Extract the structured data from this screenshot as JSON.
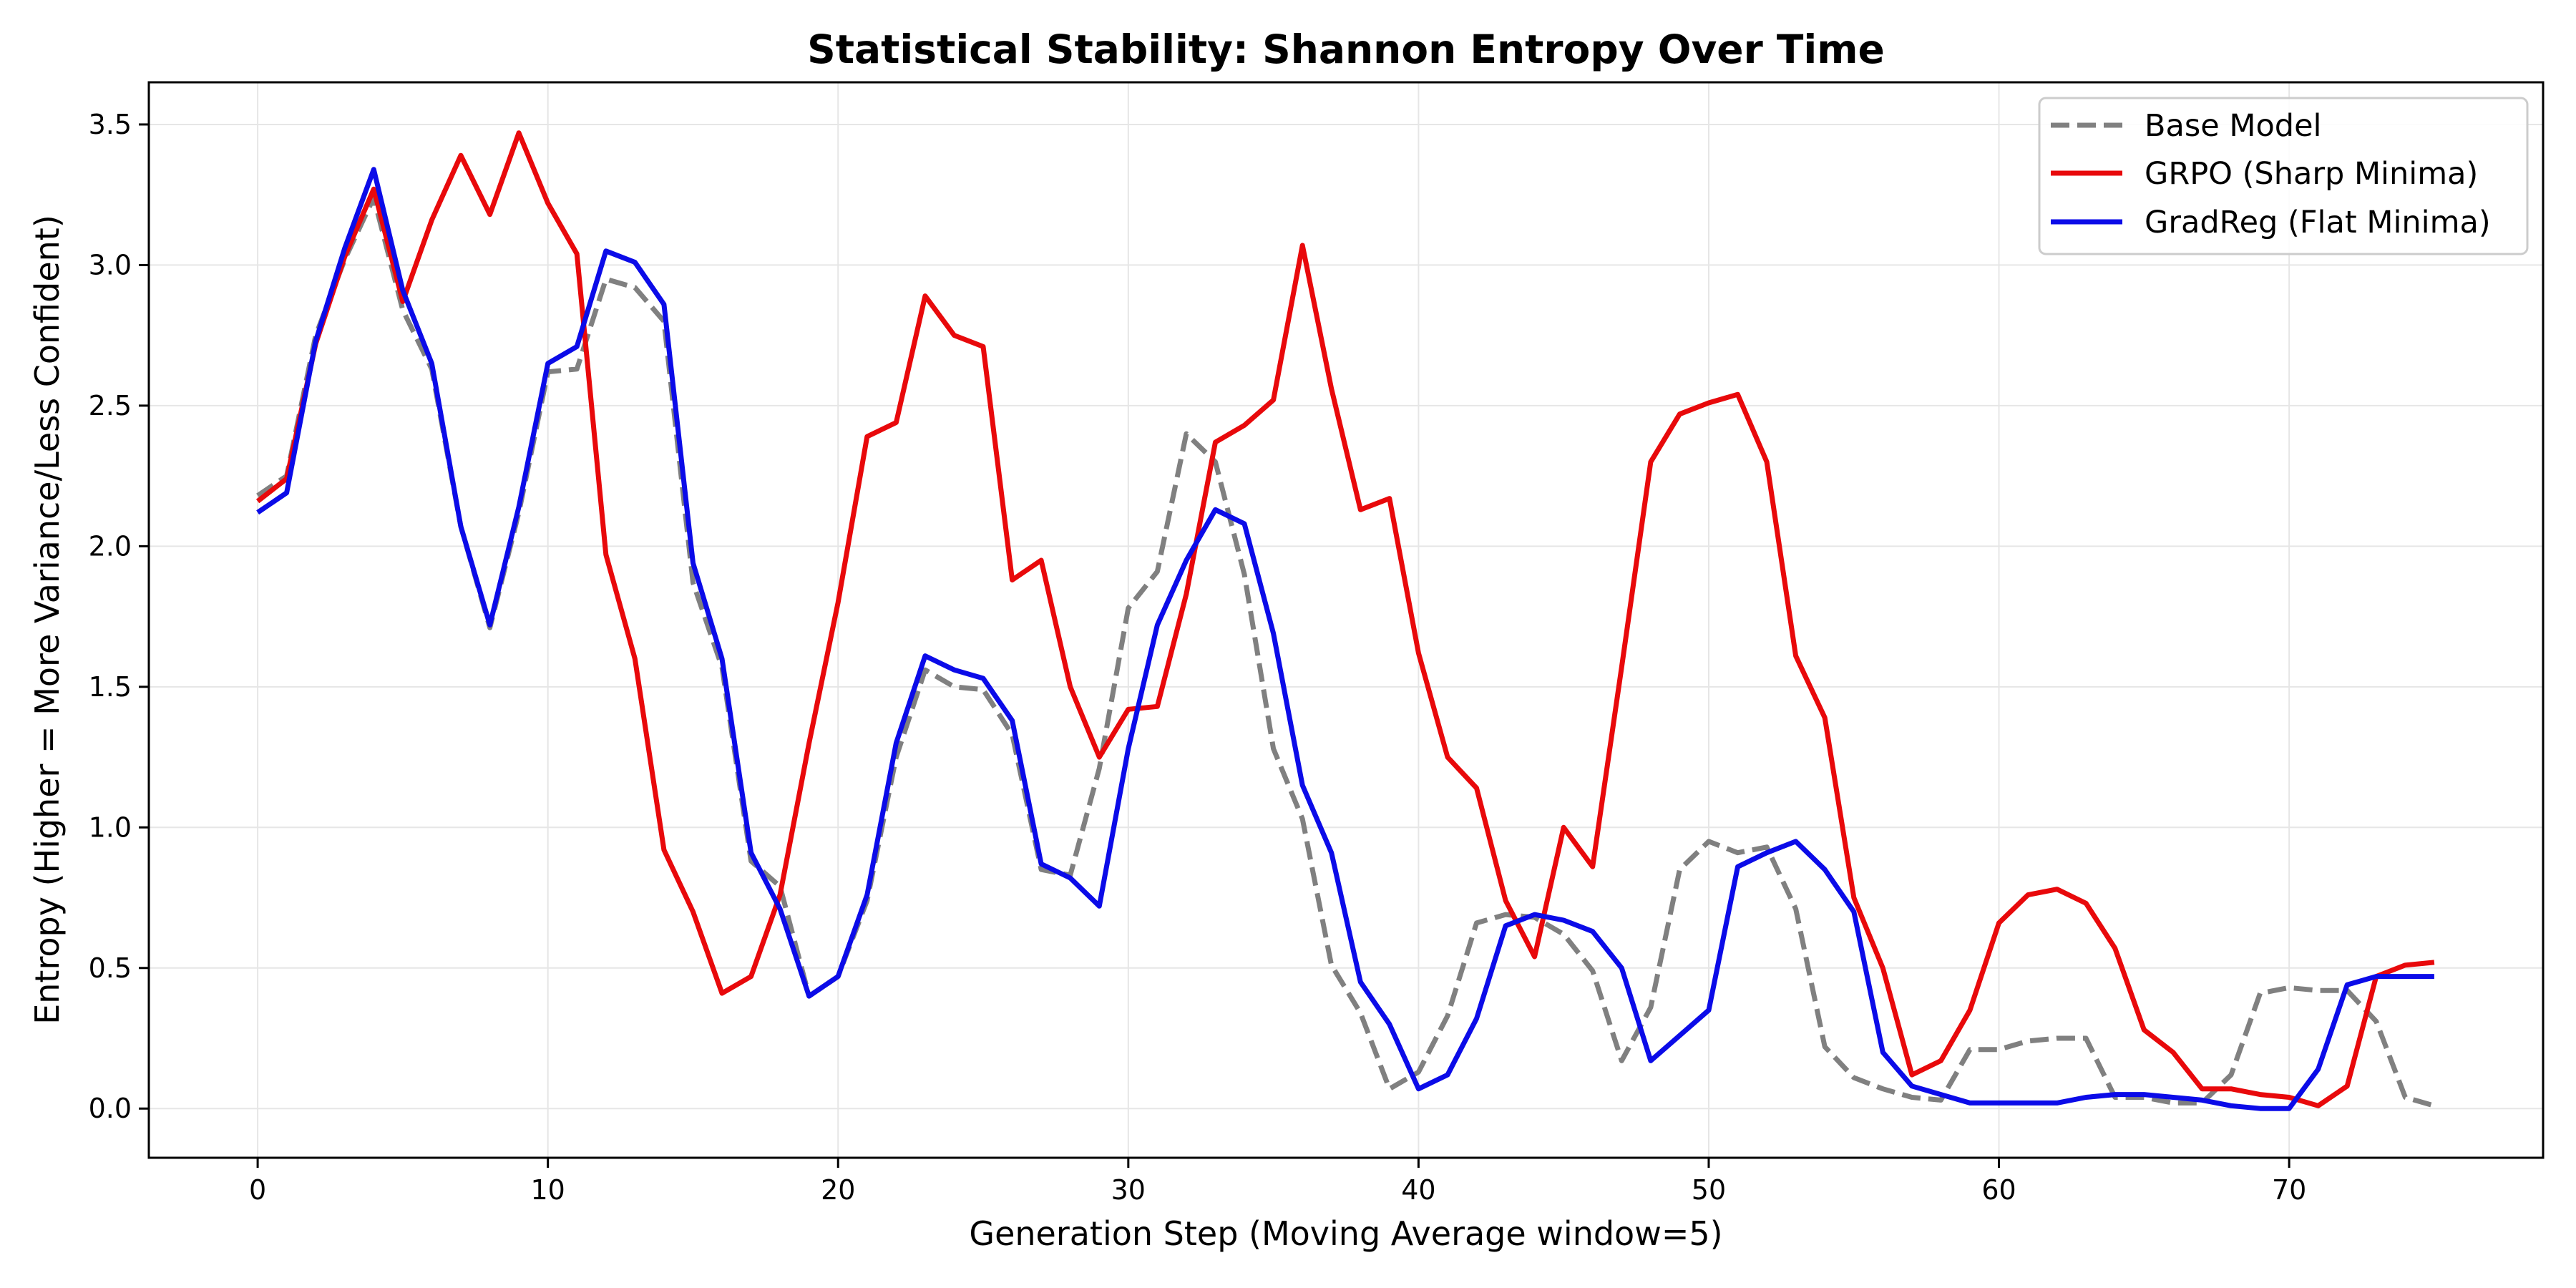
{
  "chart_data": {
    "type": "line",
    "title": "Statistical Stability: Shannon Entropy Over Time",
    "xlabel": "Generation Step (Moving Average window=5)",
    "ylabel": "Entropy (Higher = More Variance/Less Confident)",
    "xlim": [
      -3.75,
      78.75
    ],
    "ylim": [
      -0.175,
      3.65
    ],
    "xticks": [
      0,
      10,
      20,
      30,
      40,
      50,
      60,
      70
    ],
    "yticks": [
      0.0,
      0.5,
      1.0,
      1.5,
      2.0,
      2.5,
      3.0,
      3.5
    ],
    "grid": true,
    "legend_position": "top-right",
    "series": [
      {
        "name": "Base Model",
        "color": "#808080",
        "style": "dashed",
        "x": [
          0,
          1,
          2,
          3,
          4,
          5,
          6,
          7,
          8,
          9,
          10,
          11,
          12,
          13,
          14,
          15,
          16,
          17,
          18,
          19,
          20,
          21,
          22,
          23,
          24,
          25,
          26,
          27,
          28,
          29,
          30,
          31,
          32,
          33,
          34,
          35,
          36,
          37,
          38,
          39,
          40,
          41,
          42,
          43,
          44,
          45,
          46,
          47,
          48,
          49,
          50,
          51,
          52,
          53,
          54,
          55,
          56,
          57,
          58,
          59,
          60,
          61,
          62,
          63,
          64,
          65,
          66,
          67,
          68,
          69,
          70,
          71,
          72,
          73,
          74,
          75
        ],
        "values": [
          2.18,
          2.25,
          2.75,
          3.02,
          3.24,
          2.84,
          2.63,
          2.07,
          1.71,
          2.12,
          2.62,
          2.63,
          2.95,
          2.92,
          2.8,
          1.87,
          1.57,
          0.88,
          0.79,
          0.4,
          0.47,
          0.74,
          1.25,
          1.56,
          1.5,
          1.49,
          1.33,
          0.85,
          0.83,
          1.21,
          1.78,
          1.91,
          2.4,
          2.3,
          1.9,
          1.28,
          1.03,
          0.51,
          0.34,
          0.07,
          0.13,
          0.33,
          0.66,
          0.69,
          0.68,
          0.62,
          0.49,
          0.17,
          0.36,
          0.85,
          0.95,
          0.91,
          0.93,
          0.71,
          0.22,
          0.11,
          0.07,
          0.04,
          0.03,
          0.21,
          0.21,
          0.24,
          0.25,
          0.25,
          0.04,
          0.04,
          0.02,
          0.02,
          0.12,
          0.41,
          0.43,
          0.42,
          0.42,
          0.31,
          0.04,
          0.01
        ]
      },
      {
        "name": "GRPO (Sharp Minima)",
        "color": "#e8090b",
        "style": "solid",
        "x": [
          0,
          1,
          2,
          3,
          4,
          5,
          6,
          7,
          8,
          9,
          10,
          11,
          12,
          13,
          14,
          15,
          16,
          17,
          18,
          19,
          20,
          21,
          22,
          23,
          24,
          25,
          26,
          27,
          28,
          29,
          30,
          31,
          32,
          33,
          34,
          35,
          36,
          37,
          38,
          39,
          40,
          41,
          42,
          43,
          44,
          45,
          46,
          47,
          48,
          49,
          50,
          51,
          52,
          53,
          54,
          55,
          56,
          57,
          58,
          59,
          60,
          61,
          62,
          63,
          64,
          65,
          66,
          67,
          68,
          69,
          70,
          71,
          72,
          73,
          74,
          75
        ],
        "values": [
          2.16,
          2.24,
          2.72,
          3.03,
          3.27,
          2.87,
          3.16,
          3.39,
          3.18,
          3.47,
          3.22,
          3.04,
          1.97,
          1.6,
          0.92,
          0.7,
          0.41,
          0.47,
          0.76,
          1.3,
          1.8,
          2.39,
          2.44,
          2.89,
          2.75,
          2.71,
          1.88,
          1.95,
          1.5,
          1.25,
          1.42,
          1.43,
          1.83,
          2.37,
          2.43,
          2.52,
          3.07,
          2.56,
          2.13,
          2.17,
          1.62,
          1.25,
          1.14,
          0.74,
          0.54,
          1.0,
          0.86,
          1.57,
          2.3,
          2.47,
          2.51,
          2.54,
          2.3,
          1.61,
          1.39,
          0.75,
          0.5,
          0.12,
          0.17,
          0.35,
          0.66,
          0.76,
          0.78,
          0.73,
          0.57,
          0.28,
          0.2,
          0.07,
          0.07,
          0.05,
          0.04,
          0.01,
          0.08,
          0.47,
          0.51,
          0.52
        ]
      },
      {
        "name": "GradReg (Flat Minima)",
        "color": "#0b0be8",
        "style": "solid",
        "x": [
          0,
          1,
          2,
          3,
          4,
          5,
          6,
          7,
          8,
          9,
          10,
          11,
          12,
          13,
          14,
          15,
          16,
          17,
          18,
          19,
          20,
          21,
          22,
          23,
          24,
          25,
          26,
          27,
          28,
          29,
          30,
          31,
          32,
          33,
          34,
          35,
          36,
          37,
          38,
          39,
          40,
          41,
          42,
          43,
          44,
          45,
          46,
          47,
          48,
          49,
          50,
          51,
          52,
          53,
          54,
          55,
          56,
          57,
          58,
          59,
          60,
          61,
          62,
          63,
          64,
          65,
          66,
          67,
          68,
          69,
          70,
          71,
          72,
          73,
          74,
          75
        ],
        "values": [
          2.12,
          2.19,
          2.73,
          3.06,
          3.34,
          2.91,
          2.65,
          2.07,
          1.72,
          2.14,
          2.65,
          2.71,
          3.05,
          3.01,
          2.86,
          1.94,
          1.6,
          0.91,
          0.71,
          0.4,
          0.47,
          0.76,
          1.3,
          1.61,
          1.56,
          1.53,
          1.38,
          0.87,
          0.82,
          0.72,
          1.28,
          1.72,
          1.95,
          2.13,
          2.08,
          1.69,
          1.15,
          0.91,
          0.45,
          0.3,
          0.07,
          0.12,
          0.32,
          0.65,
          0.69,
          0.67,
          0.63,
          0.5,
          0.17,
          0.26,
          0.35,
          0.86,
          0.91,
          0.95,
          0.85,
          0.7,
          0.2,
          0.08,
          0.05,
          0.02,
          0.02,
          0.02,
          0.02,
          0.04,
          0.05,
          0.05,
          0.04,
          0.03,
          0.01,
          0.0,
          0.0,
          0.14,
          0.44,
          0.47,
          0.47,
          0.47
        ]
      }
    ]
  }
}
